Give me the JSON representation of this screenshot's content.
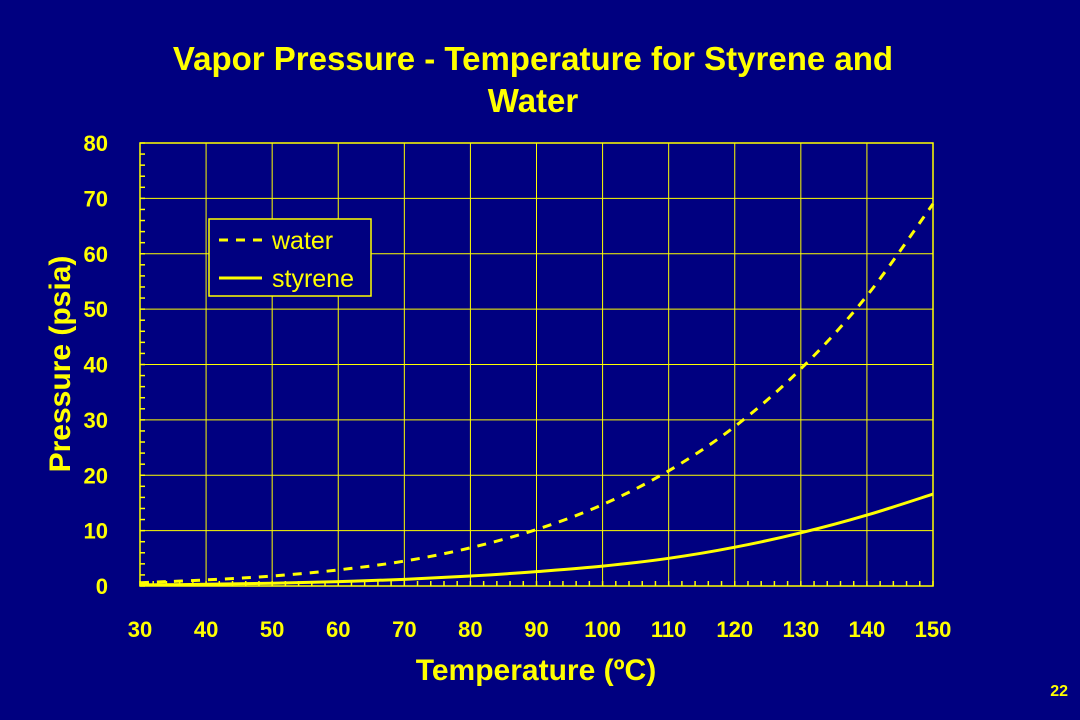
{
  "colors": {
    "background": "#000080",
    "foreground": "#FFFF00"
  },
  "slide_number": "22",
  "chart_data": {
    "type": "line",
    "title": "Vapor Pressure - Temperature for Styrene and Water",
    "title_lines": [
      "Vapor Pressure - Temperature for Styrene and",
      "Water"
    ],
    "xlabel": "Temperature (ºC)",
    "ylabel": "Pressure (psia)",
    "xlim": [
      30,
      150
    ],
    "ylim": [
      0,
      80
    ],
    "x_ticks": [
      30,
      40,
      50,
      60,
      70,
      80,
      90,
      100,
      110,
      120,
      130,
      140,
      150
    ],
    "y_ticks": [
      0,
      10,
      20,
      30,
      40,
      50,
      60,
      70,
      80
    ],
    "grid": true,
    "legend_position": "upper-left",
    "x": [
      30,
      40,
      50,
      60,
      70,
      80,
      90,
      100,
      110,
      120,
      130,
      140,
      150
    ],
    "series": [
      {
        "name": "water",
        "style": "dashed",
        "values": [
          0.6,
          1.1,
          1.8,
          2.9,
          4.5,
          6.9,
          10.2,
          14.7,
          20.8,
          28.8,
          39.2,
          52.4,
          69.0
        ]
      },
      {
        "name": "styrene",
        "style": "solid",
        "values": [
          0.2,
          0.3,
          0.5,
          0.8,
          1.2,
          1.8,
          2.6,
          3.6,
          5.0,
          7.0,
          9.6,
          12.8,
          16.6
        ]
      }
    ]
  }
}
